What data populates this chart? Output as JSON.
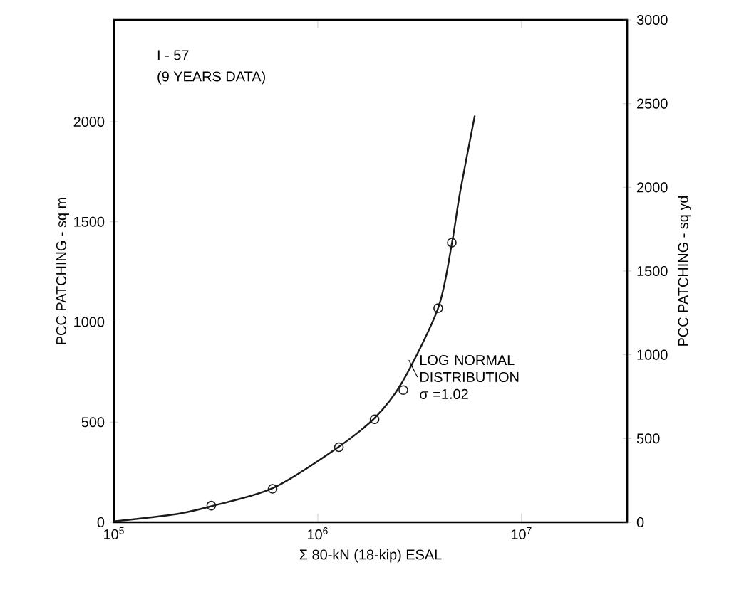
{
  "chart_data": {
    "type": "line",
    "xlabel": "Σ 80-kN (18-kip) ESAL",
    "ylabel": "PCC PATCHING - sq m",
    "y2label": "PCC PATCHING - sq yd",
    "log": "x",
    "xlim": [
      100000,
      33000000
    ],
    "xticks": [
      {
        "value": 100000,
        "label": "10$^{5}$"
      },
      {
        "value": 1000000,
        "label": "10$^{6}$"
      },
      {
        "value": 10000000,
        "label": "10$^{7}$"
      }
    ],
    "ylim": [
      0,
      2508
    ],
    "yticks": [
      0,
      500,
      1000,
      1500,
      2000
    ],
    "y2lim": [
      0,
      3000
    ],
    "y2ticks": [
      0,
      500,
      1000,
      1500,
      2000,
      2500,
      3000
    ],
    "annotations": [
      "I - 57",
      "(9 YEARS DATA)",
      {
        "text": "LOG NORMAL DISTRIBUTION σ =1.02",
        "x": 2800000,
        "y": 810
      }
    ],
    "series": [
      {
        "color": "#1a1a1a",
        "marker": "none",
        "line_style": "solid",
        "x": [
          100000,
          200000,
          300000,
          600000,
          1200000,
          1900000,
          2600000,
          3900000,
          4550000,
          5000000,
          5900000
        ],
        "values": [
          5,
          40,
          80,
          170,
          360,
          520,
          700,
          1070,
          1390,
          1650,
          2030
        ]
      },
      {
        "type": "scatter",
        "color": "#1a1a1a",
        "marker": "circle",
        "x": [
          300000,
          600000,
          1270000,
          1900000,
          2630000,
          3900000,
          4550000
        ],
        "values": [
          83,
          167,
          375,
          514,
          660,
          1069,
          1396
        ]
      }
    ]
  }
}
